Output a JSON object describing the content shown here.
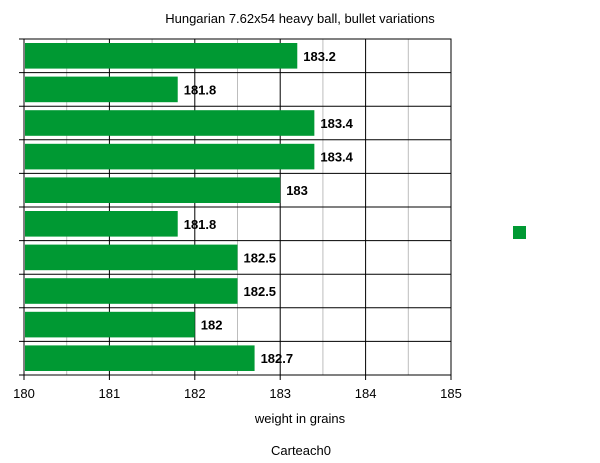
{
  "chart_data": {
    "type": "bar",
    "orientation": "horizontal",
    "title": "Hungarian 7.62x54 heavy ball, bullet variations",
    "xlabel": "weight in grains",
    "ylabel": "",
    "values": [
      183.2,
      181.8,
      183.4,
      183.4,
      183,
      181.8,
      182.5,
      182.5,
      182,
      182.7
    ],
    "value_labels": [
      "183.2",
      "181.8",
      "183.4",
      "183.4",
      "183",
      "181.8",
      "182.5",
      "182.5",
      "182",
      "182.7"
    ],
    "xlim": [
      180,
      185
    ],
    "x_ticks": [
      "180",
      "181",
      "182",
      "183",
      "184",
      "185"
    ],
    "x_minor_step": 0.5,
    "grid": true,
    "legend": "right",
    "bar_color": "#009933",
    "caption": "Carteach0"
  }
}
